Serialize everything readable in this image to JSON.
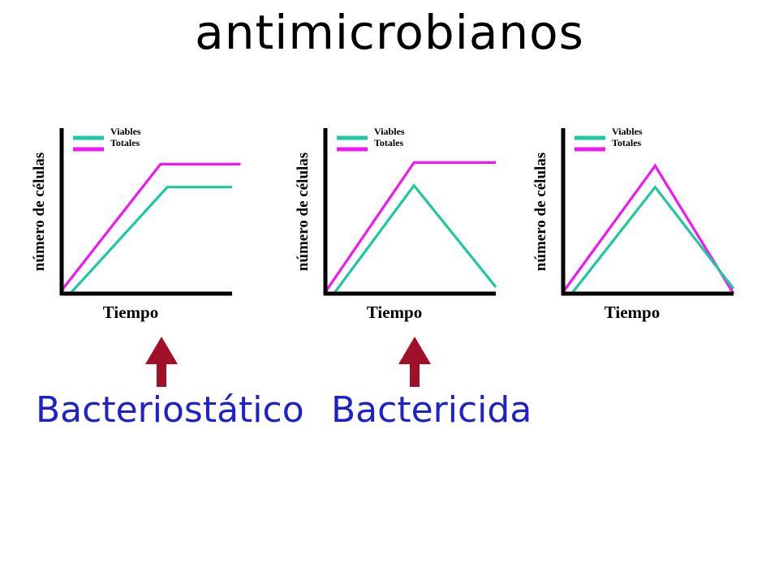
{
  "page": {
    "title": "antimicrobianos"
  },
  "labels": {
    "bacteriostatic": "Bacteriostático",
    "bactericidal": "Bactericida"
  },
  "colors": {
    "viables": "#1ec9a0",
    "totales": "#f018f0",
    "arrow": "#a01028",
    "label_text": "#1e22c8",
    "axis": "#000000"
  },
  "chart_data": [
    {
      "type": "line",
      "xlabel": "Tiempo",
      "ylabel": "número de células",
      "legend": [
        "Viables",
        "Totales"
      ],
      "xlim": [
        0,
        10
      ],
      "ylim": [
        0,
        10
      ],
      "series": [
        {
          "name": "Viables",
          "x": [
            0.5,
            6.2,
            10
          ],
          "y": [
            0,
            6.5,
            6.5
          ]
        },
        {
          "name": "Totales",
          "x": [
            0,
            5.8,
            10.5
          ],
          "y": [
            0.2,
            7.9,
            7.9
          ]
        }
      ]
    },
    {
      "type": "line",
      "xlabel": "Tiempo",
      "ylabel": "número de células",
      "legend": [
        "Viables",
        "Totales"
      ],
      "xlim": [
        0,
        10
      ],
      "ylim": [
        0,
        10
      ],
      "series": [
        {
          "name": "Viables",
          "x": [
            0.5,
            5.2,
            10
          ],
          "y": [
            0,
            6.6,
            0.4
          ]
        },
        {
          "name": "Totales",
          "x": [
            0,
            5.2,
            10
          ],
          "y": [
            0.1,
            8.0,
            8.0
          ]
        }
      ]
    },
    {
      "type": "line",
      "xlabel": "Tiempo",
      "ylabel": "número de células",
      "legend": [
        "Viables",
        "Totales"
      ],
      "xlim": [
        0,
        10
      ],
      "ylim": [
        0,
        10
      ],
      "series": [
        {
          "name": "Viables",
          "x": [
            0.5,
            5.4,
            10
          ],
          "y": [
            0,
            6.5,
            0.3
          ]
        },
        {
          "name": "Totales",
          "x": [
            0,
            5.4,
            10
          ],
          "y": [
            0.1,
            7.8,
            0
          ]
        }
      ]
    }
  ]
}
